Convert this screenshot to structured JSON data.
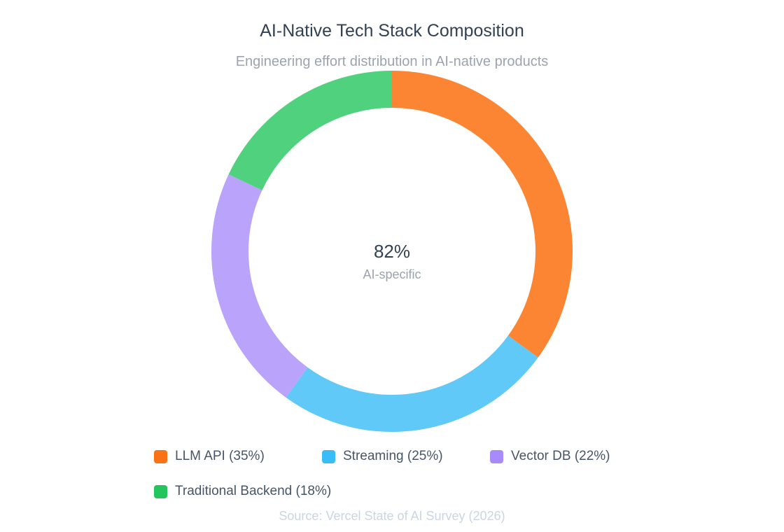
{
  "chart_data": {
    "type": "pie",
    "title": "AI-Native Tech Stack Composition",
    "subtitle": "Engineering effort distribution in AI-native products",
    "categories": [
      "LLM API (35%)",
      "Streaming (25%)",
      "Vector DB (22%)",
      "Traditional Backend (18%)"
    ],
    "values": [
      35,
      25,
      22,
      18
    ],
    "series": [
      {
        "name": "LLM API (35%)",
        "value": 35,
        "color": "#f97316",
        "display_color": "#fb8532"
      },
      {
        "name": "Streaming (25%)",
        "value": 25,
        "color": "#38bdf8",
        "display_color": "#60c9f8"
      },
      {
        "name": "Vector DB (22%)",
        "value": 22,
        "color": "#a78bfa",
        "display_color": "#b9a3fb"
      },
      {
        "name": "Traditional Backend (18%)",
        "value": 18,
        "color": "#22c55e",
        "display_color": "#4fd17d"
      }
    ],
    "donut": true,
    "center_value": "82%",
    "center_label": "AI-specific",
    "legend_position": "bottom",
    "source": "Source: Vercel State of AI Survey (2026)"
  }
}
